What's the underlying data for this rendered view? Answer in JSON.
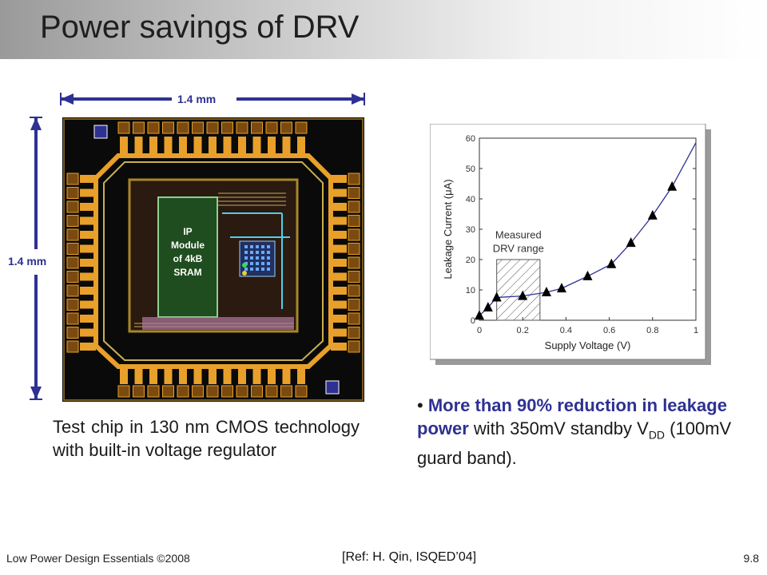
{
  "slide": {
    "title": "Power savings of DRV",
    "chip": {
      "width_label": "1.4 mm",
      "height_label": "1.4 mm",
      "ip_label_lines": [
        "IP",
        "Module",
        "of 4kB",
        "SRAM"
      ]
    },
    "caption": "Test chip in 130 nm CMOS technology with built-in voltage regulator",
    "bullet": {
      "marker": "•",
      "highlight": "More than 90% reduction in leakage power",
      "text_before_sub": " with 350mV standby V",
      "sub": "DD",
      "text_after_sub": " (100mV guard band)."
    },
    "footer": {
      "left": "Low Power Design Essentials ©2008",
      "center": "[Ref: H. Qin, ISQED’04]",
      "right": "9.8"
    }
  },
  "colors": {
    "accent": "#2e3192",
    "chip_bg": "#0a0a0a",
    "pad_orange": "#e8a02a",
    "ip_block": "#1f4d1f",
    "curve": "#2e3192"
  },
  "chart_data": {
    "type": "scatter",
    "xlabel": "Supply Voltage (V)",
    "ylabel": "Leakage Current (μA)",
    "xlim": [
      0,
      1
    ],
    "ylim": [
      0,
      60
    ],
    "xticks": [
      "0",
      "0.2",
      "0.4",
      "0.6",
      "0.8",
      "1"
    ],
    "yticks": [
      "0",
      "10",
      "20",
      "30",
      "40",
      "50",
      "60"
    ],
    "annotation": [
      "Measured",
      "DRV range"
    ],
    "shaded_region": [
      0.08,
      0.28
    ],
    "markers": {
      "x": [
        0.0,
        0.04,
        0.08,
        0.2,
        0.31,
        0.38,
        0.5,
        0.61,
        0.7,
        0.8,
        0.89
      ],
      "y": [
        1.5,
        4.2,
        7.5,
        8.0,
        9.2,
        10.5,
        14.5,
        18.5,
        25.5,
        34.5,
        44.0
      ]
    },
    "curve": {
      "x": [
        0.0,
        0.04,
        0.08,
        0.2,
        0.31,
        0.38,
        0.5,
        0.61,
        0.7,
        0.8,
        0.89,
        1.0
      ],
      "y": [
        1.5,
        4.2,
        7.5,
        8.0,
        9.2,
        10.5,
        14.5,
        18.5,
        25.5,
        34.5,
        44.0,
        58.5
      ]
    },
    "grid": false
  }
}
